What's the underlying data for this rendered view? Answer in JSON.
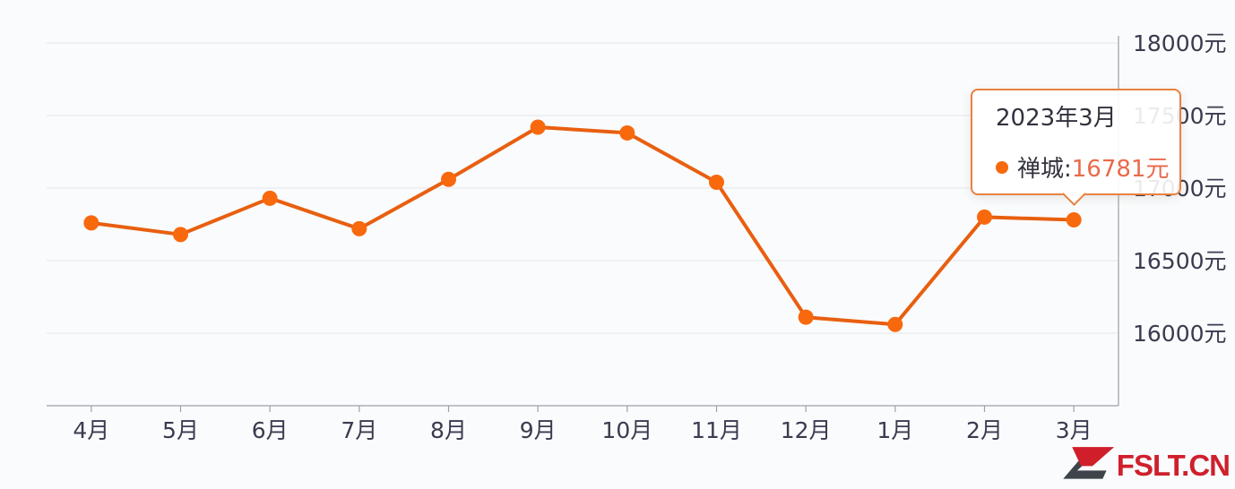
{
  "page": {
    "background": "#fafbfc"
  },
  "chart_data": {
    "type": "line",
    "series": [
      {
        "name": "禅城",
        "values": [
          16760,
          16680,
          16930,
          16720,
          17060,
          17420,
          17380,
          17040,
          16110,
          16060,
          16800,
          16781
        ]
      }
    ],
    "categories": [
      "4月",
      "5月",
      "6月",
      "7月",
      "8月",
      "9月",
      "10月",
      "11月",
      "12月",
      "1月",
      "2月",
      "3月"
    ],
    "title": "",
    "xlabel": "",
    "ylabel": "",
    "unit": "元",
    "ylim": [
      15500,
      18000
    ],
    "y_interval": 500,
    "y_tick_labels": [
      "16000元",
      "16500元",
      "17000元",
      "17500元",
      "18000元"
    ],
    "y_tick_values": [
      16000,
      16500,
      17000,
      17500,
      18000
    ],
    "y_axis_position": "right",
    "grid": "horizontal-only",
    "legend": "none",
    "line_color": "#e85f10",
    "point_color": "#f8690e",
    "gridline_color": "#e4e6ec",
    "axis_line_color": "#9ba1a9",
    "axis_label_color": "#3b3b4f"
  },
  "tooltip": {
    "title": "2023年3月",
    "series_label": "禅城:",
    "value": "16781元",
    "highlighted_category_index": 11,
    "border_color": "#e8813f",
    "value_color": "#ea6a4b",
    "marker_color": "#f8690e"
  },
  "watermark": {
    "text": "FSLT.CN",
    "color": "#cf202c",
    "logo_red": "#d01f2b",
    "logo_dark": "#3f434a"
  }
}
